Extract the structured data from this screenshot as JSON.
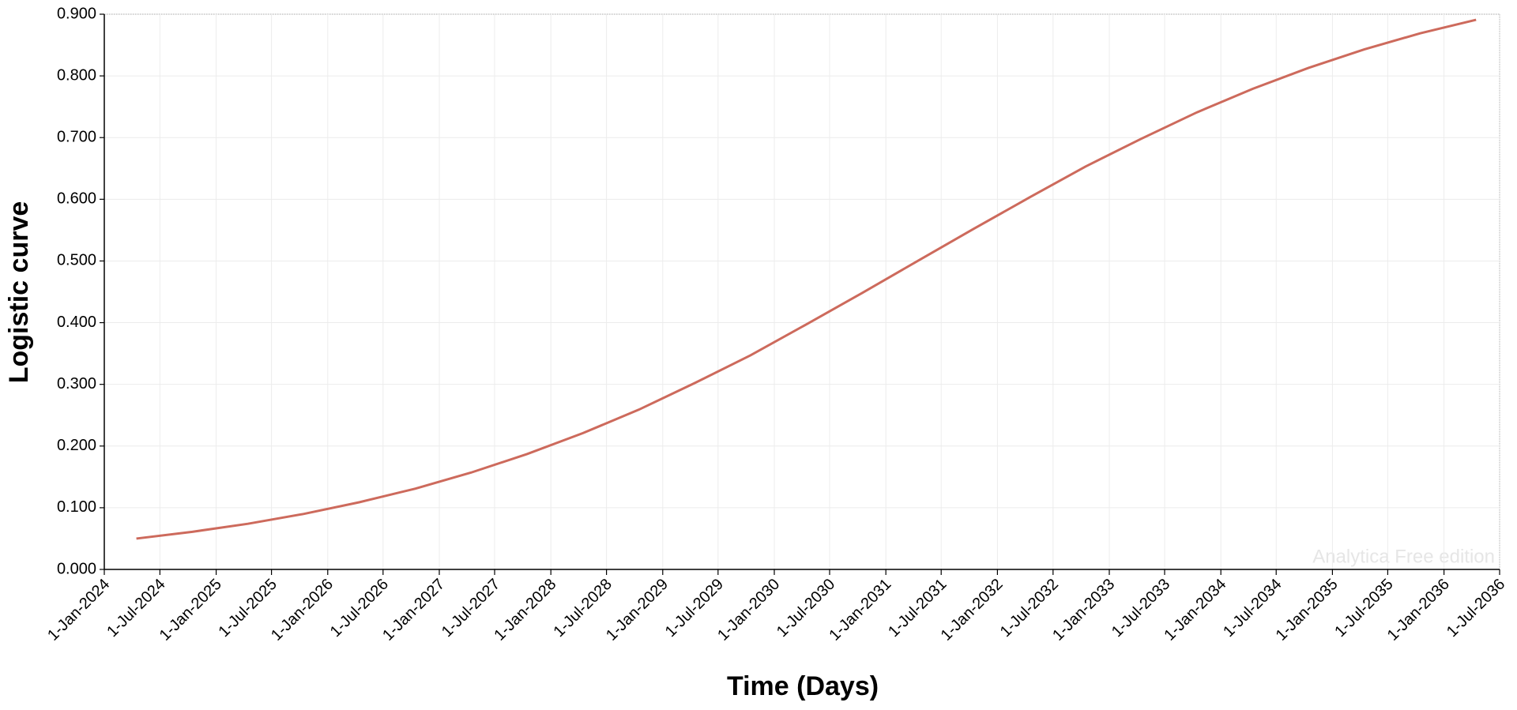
{
  "chart_data": {
    "type": "line",
    "x_label": "Time (Days)",
    "y_label": "Logistic curve",
    "watermark": "Analytica Free edition",
    "x": [
      "2024-04-15",
      "2024-10-15",
      "2025-04-15",
      "2025-10-15",
      "2026-04-15",
      "2026-10-15",
      "2027-04-15",
      "2027-10-15",
      "2028-04-15",
      "2028-10-15",
      "2029-04-15",
      "2029-10-15",
      "2030-04-15",
      "2030-10-15",
      "2031-04-15",
      "2031-10-15",
      "2032-04-15",
      "2032-10-15",
      "2033-04-15",
      "2033-10-15",
      "2034-04-15",
      "2034-10-15",
      "2035-04-15",
      "2035-10-15",
      "2036-04-15"
    ],
    "series": [
      {
        "name": "Logistic curve",
        "color": "#cd6a5c",
        "values": [
          0.05,
          0.061,
          0.074,
          0.09,
          0.109,
          0.131,
          0.157,
          0.187,
          0.221,
          0.259,
          0.302,
          0.347,
          0.397,
          0.448,
          0.5,
          0.552,
          0.603,
          0.653,
          0.698,
          0.741,
          0.779,
          0.813,
          0.843,
          0.869,
          0.891
        ]
      }
    ],
    "xlim": [
      {
        "value": "2024-01-01",
        "label": "1-Jan-2024"
      },
      {
        "value": "2036-07-01",
        "label": "1-Jul-2036"
      }
    ],
    "xticks": [
      {
        "value": "2024-01-01",
        "label": "1-Jan-2024"
      },
      {
        "value": "2024-07-01",
        "label": "1-Jul-2024"
      },
      {
        "value": "2025-01-01",
        "label": "1-Jan-2025"
      },
      {
        "value": "2025-07-01",
        "label": "1-Jul-2025"
      },
      {
        "value": "2026-01-01",
        "label": "1-Jan-2026"
      },
      {
        "value": "2026-07-01",
        "label": "1-Jul-2026"
      },
      {
        "value": "2027-01-01",
        "label": "1-Jan-2027"
      },
      {
        "value": "2027-07-01",
        "label": "1-Jul-2027"
      },
      {
        "value": "2028-01-01",
        "label": "1-Jan-2028"
      },
      {
        "value": "2028-07-01",
        "label": "1-Jul-2028"
      },
      {
        "value": "2029-01-01",
        "label": "1-Jan-2029"
      },
      {
        "value": "2029-07-01",
        "label": "1-Jul-2029"
      },
      {
        "value": "2030-01-01",
        "label": "1-Jan-2030"
      },
      {
        "value": "2030-07-01",
        "label": "1-Jul-2030"
      },
      {
        "value": "2031-01-01",
        "label": "1-Jan-2031"
      },
      {
        "value": "2031-07-01",
        "label": "1-Jul-2031"
      },
      {
        "value": "2032-01-01",
        "label": "1-Jan-2032"
      },
      {
        "value": "2032-07-01",
        "label": "1-Jul-2032"
      },
      {
        "value": "2033-01-01",
        "label": "1-Jan-2033"
      },
      {
        "value": "2033-07-01",
        "label": "1-Jul-2033"
      },
      {
        "value": "2034-01-01",
        "label": "1-Jan-2034"
      },
      {
        "value": "2034-07-01",
        "label": "1-Jul-2034"
      },
      {
        "value": "2035-01-01",
        "label": "1-Jan-2035"
      },
      {
        "value": "2035-07-01",
        "label": "1-Jul-2035"
      },
      {
        "value": "2036-01-01",
        "label": "1-Jan-2036"
      },
      {
        "value": "2036-07-01",
        "label": "1-Jul-2036"
      }
    ],
    "ylim": [
      0,
      0.9
    ],
    "yticks": [
      {
        "value": 0,
        "label": "0.000"
      },
      {
        "value": 0.1,
        "label": "0.100"
      },
      {
        "value": 0.2,
        "label": "0.200"
      },
      {
        "value": 0.3,
        "label": "0.300"
      },
      {
        "value": 0.4,
        "label": "0.400"
      },
      {
        "value": 0.5,
        "label": "0.500"
      },
      {
        "value": 0.6,
        "label": "0.600"
      },
      {
        "value": 0.7,
        "label": "0.700"
      },
      {
        "value": 0.8,
        "label": "0.800"
      },
      {
        "value": 0.9,
        "label": "0.900"
      }
    ],
    "grid": true
  }
}
